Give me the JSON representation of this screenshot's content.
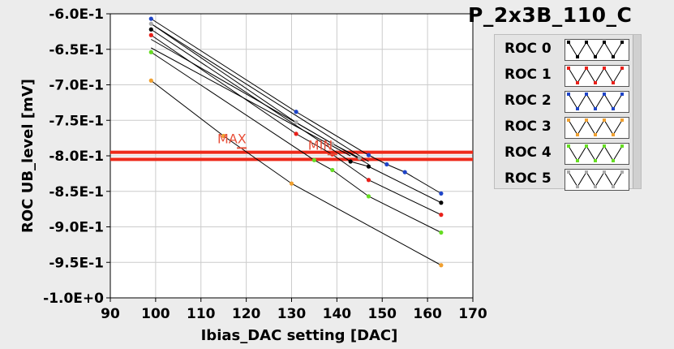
{
  "title": "P_2x3B_110_C",
  "chart_data": {
    "type": "line",
    "xlabel": "Ibias_DAC setting [DAC]",
    "ylabel": "ROC UB_level [mV]",
    "xlim": [
      90,
      170
    ],
    "ylim": [
      -1.0,
      -0.6
    ],
    "xticks": [
      90,
      100,
      110,
      120,
      130,
      140,
      150,
      160,
      170
    ],
    "xtick_labels": [
      "90",
      "100",
      "110",
      "120",
      "130",
      "140",
      "150",
      "160",
      "170"
    ],
    "yticks": [
      -0.6,
      -0.65,
      -0.7,
      -0.75,
      -0.8,
      -0.85,
      -0.9,
      -0.95,
      -1.0
    ],
    "ytick_labels": [
      "-6.0E-1",
      "-6.5E-1",
      "-7.0E-1",
      "-7.5E-1",
      "-8.0E-1",
      "-8.5E-1",
      "-9.0E-1",
      "-9.5E-1",
      "-1.0E+0"
    ],
    "grid": true,
    "legend_position": "right",
    "series": [
      {
        "name": "ROC 0",
        "color": "#000000",
        "x": [
          99,
          143,
          147,
          163
        ],
        "y": [
          -0.622,
          -0.808,
          -0.815,
          -0.866
        ]
      },
      {
        "name": "ROC 1",
        "color": "#e8201a",
        "x": [
          99,
          131,
          139,
          147,
          163
        ],
        "y": [
          -0.63,
          -0.769,
          -0.798,
          -0.834,
          -0.883
        ]
      },
      {
        "name": "ROC 2",
        "color": "#1e44c8",
        "x": [
          99,
          131,
          147,
          151,
          155,
          163
        ],
        "y": [
          -0.607,
          -0.738,
          -0.799,
          -0.812,
          -0.823,
          -0.853
        ]
      },
      {
        "name": "ROC 3",
        "color": "#f0a030",
        "x": [
          99,
          115,
          130,
          163
        ],
        "y": [
          -0.694,
          -0.772,
          -0.839,
          -0.954
        ]
      },
      {
        "name": "ROC 4",
        "color": "#66dd22",
        "x": [
          99,
          135,
          139,
          147,
          163
        ],
        "y": [
          -0.654,
          -0.806,
          -0.82,
          -0.857,
          -0.908
        ]
      },
      {
        "name": "ROC 5",
        "color": "#aaaaaa",
        "x": [
          99,
          131,
          139,
          145
        ],
        "y": [
          -0.614,
          -0.753,
          -0.783,
          -0.803
        ]
      }
    ],
    "extra_lines": [
      {
        "x": [
          99,
          147
        ],
        "y": [
          -0.614,
          -0.808
        ]
      },
      {
        "x": [
          99,
          147
        ],
        "y": [
          -0.636,
          -0.812
        ]
      },
      {
        "x": [
          99,
          143
        ],
        "y": [
          -0.648,
          -0.8
        ]
      }
    ],
    "reference_lines": [
      {
        "y": -0.795,
        "color": "#ee2a1a"
      },
      {
        "y": -0.805,
        "color": "#ee2a1a"
      }
    ],
    "markers": [
      {
        "text": "MAX",
        "x": 119,
        "y": -0.789,
        "color": "#e8503a"
      },
      {
        "text": "MIN",
        "x": 139,
        "y": -0.798,
        "color": "#e8503a"
      }
    ]
  }
}
